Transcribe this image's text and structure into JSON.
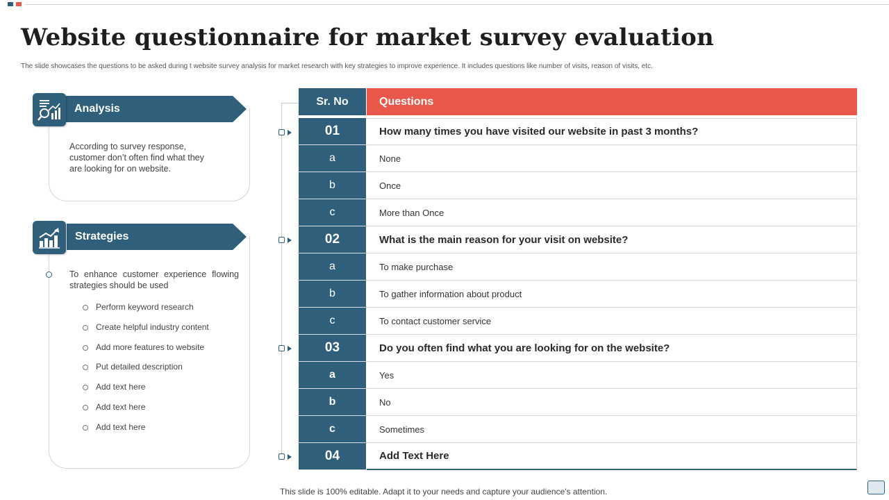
{
  "slide": {
    "title": "Website questionnaire for market survey evaluation",
    "subtitle": "The slide showcases the questions to be asked during t website survey analysis for market research with key strategies to improve experience. It includes questions like number of visits, reason of visits, etc.",
    "footer": "This slide is 100% editable. Adapt it to your needs and capture your audience's attention."
  },
  "analysis": {
    "heading": "Analysis",
    "icon": "analytics-chart-icon",
    "text": "According to survey response, customer don’t often find what they are looking for on website."
  },
  "strategies": {
    "heading": "Strategies",
    "icon": "growth-chart-icon",
    "text": "To enhance customer experience flowing strategies should be used",
    "items": [
      "Perform keyword research",
      "Create helpful industry content",
      "Add more features to website",
      "Put detailed description",
      "Add text here",
      "Add text here",
      "Add text here"
    ]
  },
  "table": {
    "header_no": "Sr. No",
    "header_questions": "Questions",
    "rows": [
      {
        "no": "01",
        "text": "How many times you have visited our website in past 3 months?"
      },
      {
        "no": "a",
        "text": "None"
      },
      {
        "no": "b",
        "text": "Once"
      },
      {
        "no": "c",
        "text": "More than Once"
      },
      {
        "no": "02",
        "text": "What is the main reason for your visit on website?"
      },
      {
        "no": "a",
        "text": "To make purchase"
      },
      {
        "no": "b",
        "text": "To gather information about product"
      },
      {
        "no": "c",
        "text": "To contact customer service"
      },
      {
        "no": "03",
        "text": "Do you often find what you are looking for on the website?"
      },
      {
        "no": "a",
        "text": "Yes"
      },
      {
        "no": "b",
        "text": "No"
      },
      {
        "no": "c",
        "text": "Sometimes"
      },
      {
        "no": "04",
        "text": "Add Text Here"
      }
    ]
  },
  "colors": {
    "primary": "#2f5f7a",
    "accent": "#e8574a"
  }
}
